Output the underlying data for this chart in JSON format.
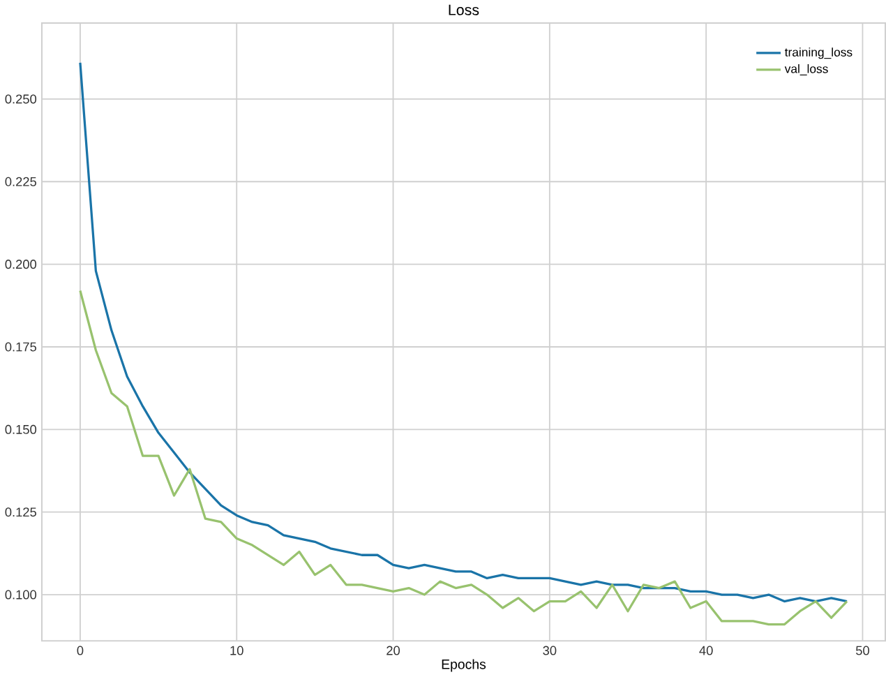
{
  "chart_data": {
    "type": "line",
    "title": "Loss",
    "xlabel": "Epochs",
    "x": [
      0,
      1,
      2,
      3,
      4,
      5,
      6,
      7,
      8,
      9,
      10,
      11,
      12,
      13,
      14,
      15,
      16,
      17,
      18,
      19,
      20,
      21,
      22,
      23,
      24,
      25,
      26,
      27,
      28,
      29,
      30,
      31,
      32,
      33,
      34,
      35,
      36,
      37,
      38,
      39,
      40,
      41,
      42,
      43,
      44,
      45,
      46,
      47,
      48,
      49
    ],
    "series": [
      {
        "name": "training_loss",
        "color": "#1a74a8",
        "values": [
          0.261,
          0.198,
          0.18,
          0.166,
          0.157,
          0.149,
          0.143,
          0.137,
          0.132,
          0.127,
          0.124,
          0.122,
          0.121,
          0.118,
          0.117,
          0.116,
          0.114,
          0.113,
          0.112,
          0.112,
          0.109,
          0.108,
          0.109,
          0.108,
          0.107,
          0.107,
          0.105,
          0.106,
          0.105,
          0.105,
          0.105,
          0.104,
          0.103,
          0.104,
          0.103,
          0.103,
          0.102,
          0.102,
          0.102,
          0.101,
          0.101,
          0.1,
          0.1,
          0.099,
          0.1,
          0.098,
          0.099,
          0.098,
          0.099,
          0.098
        ]
      },
      {
        "name": "val_loss",
        "color": "#98c26e",
        "values": [
          0.192,
          0.174,
          0.161,
          0.157,
          0.142,
          0.142,
          0.13,
          0.138,
          0.123,
          0.122,
          0.117,
          0.115,
          0.112,
          0.109,
          0.113,
          0.106,
          0.109,
          0.103,
          0.103,
          0.102,
          0.101,
          0.102,
          0.1,
          0.104,
          0.102,
          0.103,
          0.1,
          0.096,
          0.099,
          0.095,
          0.098,
          0.098,
          0.101,
          0.096,
          0.103,
          0.095,
          0.103,
          0.102,
          0.104,
          0.096,
          0.098,
          0.092,
          0.092,
          0.092,
          0.091,
          0.091,
          0.095,
          0.098,
          0.093,
          0.098
        ]
      }
    ],
    "xlim": [
      -2.45,
      51.45
    ],
    "ylim": [
      0.086,
      0.273
    ],
    "xticks": [
      0,
      10,
      20,
      30,
      40,
      50
    ],
    "yticks": [
      {
        "value": 0.1,
        "label": "0.100"
      },
      {
        "value": 0.125,
        "label": "0.125"
      },
      {
        "value": 0.15,
        "label": "0.150"
      },
      {
        "value": 0.175,
        "label": "0.175"
      },
      {
        "value": 0.2,
        "label": "0.200"
      },
      {
        "value": 0.225,
        "label": "0.225"
      },
      {
        "value": 0.25,
        "label": "0.250"
      }
    ],
    "grid": true,
    "legend": "top right",
    "marker": "none",
    "line_style": "solid"
  }
}
